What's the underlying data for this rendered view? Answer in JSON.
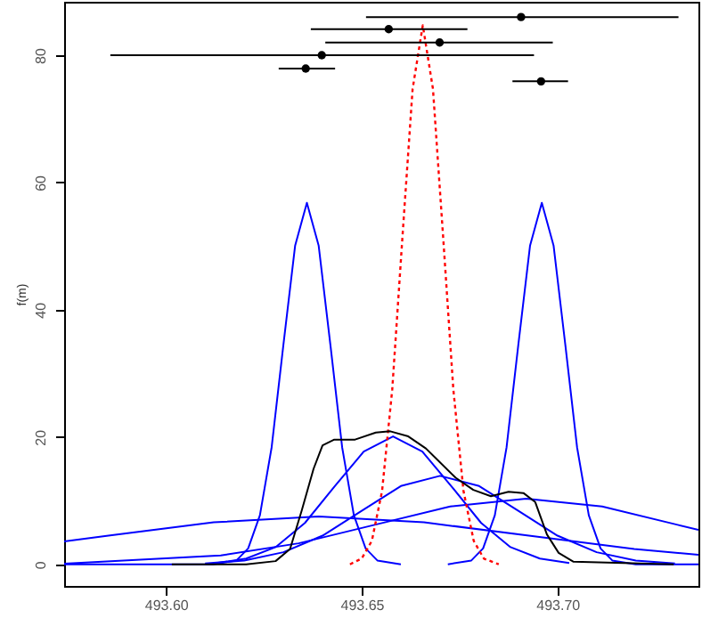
{
  "chart_data": {
    "type": "line",
    "ylabel": "f(m)",
    "xlim": [
      493.574,
      493.736
    ],
    "ylim": [
      -3.4,
      88.4
    ],
    "xticks": [
      {
        "value": 493.6,
        "label": "493.60"
      },
      493.65,
      {
        "value": 493.7,
        "label": "493.70"
      }
    ],
    "yticks": [
      0,
      20,
      40,
      60,
      80
    ],
    "grid": false,
    "series": [
      {
        "color": "#0000ff",
        "x": [
          493.574,
          493.612,
          493.618,
          493.621,
          493.624,
          493.627,
          493.63,
          493.633,
          493.636,
          493.639,
          493.642,
          493.645,
          493.648,
          493.651,
          493.654,
          493.66
        ],
        "values": [
          0,
          0,
          0.6,
          2.5,
          7.7,
          18.4,
          34.5,
          50.1,
          56.8,
          50.1,
          34.5,
          18.4,
          7.7,
          2.5,
          0.6,
          0
        ]
      },
      {
        "color": "#0000ff",
        "x": [
          493.672,
          493.678,
          493.681,
          493.684,
          493.687,
          493.69,
          493.693,
          493.696,
          493.699,
          493.702,
          493.705,
          493.708,
          493.711,
          493.714,
          493.72,
          493.736
        ],
        "values": [
          0,
          0.6,
          2.5,
          7.7,
          18.4,
          34.5,
          50.1,
          56.8,
          50.1,
          34.5,
          18.4,
          7.7,
          2.5,
          0.6,
          0,
          0
        ]
      },
      {
        "color": "#0000ff",
        "x": [
          493.613,
          493.6205,
          493.628,
          493.6355,
          493.643,
          493.6505,
          493.658,
          493.6655,
          493.673,
          493.6805,
          493.688,
          493.6955,
          493.703
        ],
        "values": [
          0.2,
          0.9,
          2.7,
          6.5,
          12.2,
          17.7,
          20.1,
          17.7,
          12.2,
          6.5,
          2.7,
          0.9,
          0.2
        ]
      },
      {
        "color": "#0000ff",
        "x": [
          493.61,
          493.62,
          493.63,
          493.64,
          493.65,
          493.66,
          493.67,
          493.68,
          493.69,
          493.7,
          493.71,
          493.72,
          493.73
        ],
        "values": [
          0.15,
          0.6,
          1.9,
          4.5,
          8.4,
          12.3,
          13.9,
          12.3,
          8.4,
          4.5,
          1.9,
          0.6,
          0.15
        ]
      },
      {
        "color": "#0000ff",
        "x": [
          493.574,
          493.614,
          493.6339,
          493.6533,
          493.6726,
          493.692,
          493.7114,
          493.7307,
          493.736
        ],
        "values": [
          0.1,
          1.4,
          3.3,
          6.2,
          9.1,
          10.3,
          9.1,
          6.2,
          5.4
        ]
      },
      {
        "color": "#0000ff",
        "x": [
          493.574,
          493.5853,
          493.6122,
          493.639,
          493.6659,
          493.6927,
          493.7196,
          493.736
        ],
        "values": [
          3.6,
          4.5,
          6.6,
          7.5,
          6.6,
          4.5,
          2.4,
          1.5
        ]
      },
      {
        "color": "#ff0000",
        "line_style": "dotted",
        "x": [
          493.647,
          493.65,
          493.6526,
          493.6552,
          493.6578,
          493.6604,
          493.663,
          493.6656,
          493.6682,
          493.6708,
          493.6734,
          493.676,
          493.6786,
          493.6812,
          493.685
        ],
        "values": [
          0,
          0.9,
          3.7,
          11.5,
          27.5,
          51.4,
          74.7,
          84.7,
          74.7,
          51.4,
          27.5,
          11.5,
          3.7,
          0.9,
          0
        ]
      },
      {
        "color": "#000000",
        "x": [
          493.6015,
          493.6205,
          493.628,
          493.6317,
          493.6347,
          493.6377,
          493.64,
          493.643,
          493.6483,
          493.6536,
          493.6573,
          493.6619,
          493.6664,
          493.674,
          493.6785,
          493.683,
          493.6875,
          493.6913,
          493.6943,
          493.6973,
          493.7003,
          493.7041,
          493.7297
        ],
        "values": [
          0,
          0,
          0.5,
          2.4,
          8.5,
          15,
          18.7,
          19.6,
          19.6,
          20.7,
          20.9,
          20.1,
          18.2,
          13.6,
          11.7,
          10.7,
          11.4,
          11.2,
          9.8,
          4.7,
          1.8,
          0.4,
          0
        ]
      },
      {
        "type": "scatter",
        "color": "#000000",
        "marker": "circle",
        "x": [
          493.6907,
          493.6569,
          493.6699,
          493.6398,
          493.6357,
          493.6958
        ],
        "values": [
          86,
          84.1,
          82,
          80,
          77.9,
          75.9
        ],
        "xerrors": [
          [
            493.6511,
            493.7309
          ],
          [
            493.637,
            493.677
          ],
          [
            493.6407,
            493.6988
          ],
          [
            493.5858,
            493.694
          ],
          [
            493.6288,
            493.6432
          ],
          [
            493.6885,
            493.7027
          ]
        ]
      }
    ]
  }
}
